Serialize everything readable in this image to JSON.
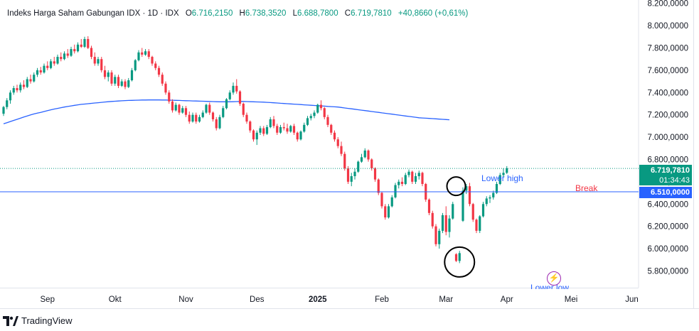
{
  "header": {
    "symbol": "Indeks Harga Saham Gabungan IDX · 1D · IDX",
    "o_label": "O",
    "o_value": "6.716,2150",
    "h_label": "H",
    "h_value": "6.738,3520",
    "l_label": "L",
    "l_value": "6.688,7800",
    "c_label": "C",
    "c_value": "6.719,7810",
    "change": "+40,8660 (+0,61%)"
  },
  "brand": {
    "name": "TradingView"
  },
  "price_tags": {
    "last_price": "6.719,7810",
    "countdown": "01:34:43",
    "level": "6.510,0000"
  },
  "annotations": {
    "lower_high": "Lower high",
    "break": "Break",
    "lower_low": "Lower low"
  },
  "colors": {
    "up": "#089981",
    "down": "#f23645",
    "ma_line": "#2962ff",
    "level_line": "#2962ff",
    "last_price_tag": "#089981",
    "level_tag": "#2962ff",
    "break_text": "#f23645",
    "lower_high_text": "#2962ff",
    "lower_low_text": "#2962ff",
    "lightning": "#9c27b0"
  },
  "chart_data": {
    "type": "candlestick",
    "title": "Indeks Harga Saham Gabungan IDX · 1D · IDX",
    "y_ticks": [
      "8.200,0000",
      "8.000,0000",
      "7.800,0000",
      "7.600,0000",
      "7.400,0000",
      "7.200,0000",
      "7.000,0000",
      "6.800,0000",
      "6.600,0000",
      "6.400,0000",
      "6.200,0000",
      "6.000,0000",
      "5.800,0000"
    ],
    "y_tick_values": [
      8200,
      8000,
      7800,
      7600,
      7400,
      7200,
      7000,
      6800,
      6600,
      6400,
      6200,
      6000,
      5800
    ],
    "ylim": [
      5650,
      8230
    ],
    "x_ticks": [
      {
        "label": "Sep",
        "i": 13
      },
      {
        "label": "Okt",
        "i": 33
      },
      {
        "label": "Nov",
        "i": 54
      },
      {
        "label": "Des",
        "i": 75
      },
      {
        "label": "2025",
        "i": 93
      },
      {
        "label": "Feb",
        "i": 112
      },
      {
        "label": "Mar",
        "i": 131
      },
      {
        "label": "Apr",
        "i": 149
      },
      {
        "label": "Mei",
        "i": 168
      },
      {
        "label": "Jun",
        "i": 186
      }
    ],
    "candles": [
      [
        7210,
        7280,
        7190,
        7270
      ],
      [
        7270,
        7350,
        7250,
        7330
      ],
      [
        7330,
        7420,
        7300,
        7400
      ],
      [
        7400,
        7460,
        7380,
        7440
      ],
      [
        7440,
        7470,
        7400,
        7420
      ],
      [
        7420,
        7490,
        7400,
        7470
      ],
      [
        7470,
        7510,
        7430,
        7450
      ],
      [
        7450,
        7540,
        7440,
        7520
      ],
      [
        7520,
        7560,
        7480,
        7500
      ],
      [
        7500,
        7580,
        7490,
        7560
      ],
      [
        7560,
        7620,
        7540,
        7600
      ],
      [
        7600,
        7630,
        7560,
        7580
      ],
      [
        7580,
        7660,
        7570,
        7640
      ],
      [
        7640,
        7680,
        7600,
        7620
      ],
      [
        7620,
        7700,
        7610,
        7680
      ],
      [
        7680,
        7720,
        7640,
        7660
      ],
      [
        7660,
        7740,
        7650,
        7720
      ],
      [
        7720,
        7760,
        7680,
        7700
      ],
      [
        7700,
        7770,
        7690,
        7750
      ],
      [
        7750,
        7790,
        7710,
        7730
      ],
      [
        7730,
        7810,
        7720,
        7790
      ],
      [
        7790,
        7830,
        7750,
        7770
      ],
      [
        7770,
        7850,
        7760,
        7830
      ],
      [
        7830,
        7880,
        7800,
        7810
      ],
      [
        7810,
        7900,
        7800,
        7880
      ],
      [
        7880,
        7905,
        7790,
        7800
      ],
      [
        7800,
        7820,
        7700,
        7720
      ],
      [
        7720,
        7760,
        7640,
        7660
      ],
      [
        7660,
        7720,
        7640,
        7700
      ],
      [
        7700,
        7720,
        7580,
        7600
      ],
      [
        7600,
        7640,
        7520,
        7540
      ],
      [
        7540,
        7600,
        7500,
        7580
      ],
      [
        7580,
        7600,
        7460,
        7480
      ],
      [
        7480,
        7560,
        7460,
        7540
      ],
      [
        7540,
        7560,
        7440,
        7460
      ],
      [
        7460,
        7520,
        7450,
        7500
      ],
      [
        7500,
        7520,
        7430,
        7450
      ],
      [
        7450,
        7530,
        7440,
        7510
      ],
      [
        7510,
        7620,
        7500,
        7600
      ],
      [
        7600,
        7700,
        7590,
        7690
      ],
      [
        7690,
        7780,
        7680,
        7760
      ],
      [
        7760,
        7800,
        7720,
        7740
      ],
      [
        7740,
        7790,
        7730,
        7770
      ],
      [
        7770,
        7790,
        7700,
        7720
      ],
      [
        7720,
        7730,
        7640,
        7660
      ],
      [
        7660,
        7680,
        7600,
        7620
      ],
      [
        7620,
        7640,
        7540,
        7560
      ],
      [
        7560,
        7580,
        7460,
        7480
      ],
      [
        7480,
        7500,
        7380,
        7400
      ],
      [
        7400,
        7420,
        7300,
        7320
      ],
      [
        7320,
        7340,
        7220,
        7240
      ],
      [
        7240,
        7310,
        7230,
        7290
      ],
      [
        7290,
        7300,
        7200,
        7220
      ],
      [
        7220,
        7280,
        7210,
        7260
      ],
      [
        7260,
        7280,
        7180,
        7200
      ],
      [
        7200,
        7230,
        7120,
        7140
      ],
      [
        7140,
        7220,
        7130,
        7200
      ],
      [
        7200,
        7220,
        7120,
        7140
      ],
      [
        7140,
        7200,
        7130,
        7180
      ],
      [
        7180,
        7240,
        7170,
        7220
      ],
      [
        7220,
        7300,
        7210,
        7290
      ],
      [
        7290,
        7310,
        7200,
        7220
      ],
      [
        7220,
        7230,
        7140,
        7160
      ],
      [
        7160,
        7180,
        7060,
        7080
      ],
      [
        7080,
        7200,
        7070,
        7180
      ],
      [
        7180,
        7280,
        7170,
        7260
      ],
      [
        7260,
        7350,
        7250,
        7340
      ],
      [
        7340,
        7420,
        7330,
        7400
      ],
      [
        7400,
        7490,
        7380,
        7460
      ],
      [
        7460,
        7520,
        7390,
        7410
      ],
      [
        7410,
        7420,
        7280,
        7300
      ],
      [
        7300,
        7310,
        7180,
        7200
      ],
      [
        7200,
        7220,
        7120,
        7140
      ],
      [
        7140,
        7150,
        7040,
        7060
      ],
      [
        7060,
        7070,
        6960,
        6980
      ],
      [
        6980,
        7060,
        6930,
        7040
      ],
      [
        7040,
        7100,
        7020,
        7080
      ],
      [
        7080,
        7100,
        7010,
        7030
      ],
      [
        7030,
        7110,
        7020,
        7090
      ],
      [
        7090,
        7180,
        7080,
        7160
      ],
      [
        7160,
        7190,
        7080,
        7100
      ],
      [
        7100,
        7120,
        7020,
        7040
      ],
      [
        7040,
        7110,
        7030,
        7090
      ],
      [
        7090,
        7130,
        7060,
        7080
      ],
      [
        7080,
        7120,
        7030,
        7050
      ],
      [
        7050,
        7110,
        7040,
        7100
      ],
      [
        7100,
        7120,
        7020,
        7040
      ],
      [
        7040,
        7050,
        6960,
        6980
      ],
      [
        6980,
        7060,
        6970,
        7050
      ],
      [
        7050,
        7130,
        7040,
        7110
      ],
      [
        7110,
        7190,
        7100,
        7170
      ],
      [
        7170,
        7210,
        7150,
        7190
      ],
      [
        7190,
        7240,
        7170,
        7220
      ],
      [
        7220,
        7300,
        7210,
        7290
      ],
      [
        7290,
        7330,
        7240,
        7260
      ],
      [
        7260,
        7270,
        7160,
        7180
      ],
      [
        7180,
        7200,
        7090,
        7110
      ],
      [
        7110,
        7120,
        7020,
        7040
      ],
      [
        7040,
        7060,
        6960,
        6980
      ],
      [
        6980,
        7000,
        6900,
        6920
      ],
      [
        6920,
        6960,
        6830,
        6850
      ],
      [
        6850,
        6870,
        6700,
        6720
      ],
      [
        6720,
        6740,
        6580,
        6600
      ],
      [
        6600,
        6680,
        6560,
        6650
      ],
      [
        6650,
        6720,
        6620,
        6690
      ],
      [
        6690,
        6790,
        6680,
        6780
      ],
      [
        6780,
        6850,
        6770,
        6820
      ],
      [
        6820,
        6900,
        6810,
        6880
      ],
      [
        6880,
        6890,
        6780,
        6800
      ],
      [
        6800,
        6810,
        6700,
        6720
      ],
      [
        6720,
        6730,
        6600,
        6620
      ],
      [
        6620,
        6630,
        6480,
        6500
      ],
      [
        6500,
        6510,
        6360,
        6380
      ],
      [
        6380,
        6400,
        6260,
        6280
      ],
      [
        6280,
        6400,
        6270,
        6380
      ],
      [
        6380,
        6480,
        6370,
        6460
      ],
      [
        6460,
        6590,
        6450,
        6570
      ],
      [
        6570,
        6620,
        6540,
        6600
      ],
      [
        6600,
        6640,
        6560,
        6580
      ],
      [
        6580,
        6680,
        6570,
        6660
      ],
      [
        6660,
        6710,
        6640,
        6690
      ],
      [
        6690,
        6700,
        6580,
        6600
      ],
      [
        6600,
        6680,
        6580,
        6650
      ],
      [
        6650,
        6700,
        6620,
        6680
      ],
      [
        6680,
        6690,
        6560,
        6580
      ],
      [
        6580,
        6590,
        6420,
        6440
      ],
      [
        6440,
        6450,
        6300,
        6320
      ],
      [
        6320,
        6340,
        6180,
        6200
      ],
      [
        6200,
        6220,
        6020,
        6040
      ],
      [
        6040,
        6180,
        6000,
        6160
      ],
      [
        6160,
        6320,
        6140,
        6300
      ],
      [
        6300,
        6380,
        6120,
        6150
      ],
      [
        6150,
        6300,
        6100,
        6270
      ],
      [
        6270,
        6420,
        6260,
        6400
      ],
      [
        5950,
        5960,
        5880,
        5890
      ],
      [
        5890,
        5980,
        5870,
        5960
      ],
      [
        6250,
        6550,
        6240,
        6520
      ],
      [
        6520,
        6580,
        6490,
        6560
      ],
      [
        6560,
        6590,
        6380,
        6400
      ],
      [
        6400,
        6410,
        6240,
        6260
      ],
      [
        6260,
        6270,
        6140,
        6160
      ],
      [
        6160,
        6300,
        6140,
        6290
      ],
      [
        6290,
        6420,
        6280,
        6400
      ],
      [
        6400,
        6470,
        6380,
        6450
      ],
      [
        6450,
        6480,
        6410,
        6460
      ],
      [
        6460,
        6520,
        6440,
        6500
      ],
      [
        6500,
        6600,
        6490,
        6580
      ],
      [
        6580,
        6680,
        6570,
        6660
      ],
      [
        6660,
        6720,
        6640,
        6680
      ],
      [
        6680,
        6740,
        6670,
        6720
      ]
    ],
    "series": [
      {
        "values": [
          7120,
          7130,
          7140,
          7150,
          7160,
          7170,
          7180,
          7190,
          7200,
          7208,
          7215,
          7222,
          7230,
          7238,
          7245,
          7252,
          7258,
          7264,
          7270,
          7275,
          7280,
          7285,
          7290,
          7294,
          7297,
          7300,
          7303,
          7306,
          7309,
          7312,
          7315,
          7318,
          7320,
          7322,
          7324,
          7326,
          7328,
          7329,
          7330,
          7331,
          7332,
          7333,
          7333,
          7334,
          7334,
          7334,
          7334,
          7333,
          7333,
          7332,
          7331,
          7330,
          7329,
          7328,
          7327,
          7326,
          7325,
          7324,
          7323,
          7322,
          7321,
          7320,
          7319,
          7318,
          7317,
          7317,
          7317,
          7317,
          7318,
          7319,
          7320,
          7320,
          7319,
          7318,
          7317,
          7316,
          7315,
          7314,
          7312,
          7310,
          7308,
          7306,
          7304,
          7302,
          7300,
          7298,
          7296,
          7294,
          7292,
          7290,
          7288,
          7286,
          7284,
          7282,
          7280,
          7278,
          7276,
          7274,
          7272,
          7270,
          7266,
          7262,
          7258,
          7254,
          7250,
          7246,
          7242,
          7238,
          7234,
          7230,
          7226,
          7222,
          7218,
          7214,
          7210,
          7206,
          7202,
          7198,
          7194,
          7190,
          7186,
          7182,
          7178,
          7174,
          7172,
          7170,
          7168,
          7166,
          7164,
          7162,
          7160,
          7158,
          7156
        ]
      }
    ],
    "levels": [
      {
        "value": 6510,
        "label": "6.510,0000"
      }
    ],
    "last_price": 6719.781,
    "annotations": [
      {
        "text": "Lower high",
        "i": 125,
        "y": 6655
      },
      {
        "text": "Break",
        "i": 171,
        "y": 6550
      },
      {
        "text": "Lower low",
        "i": 159,
        "y": 5680
      }
    ],
    "circles": [
      {
        "i": 134,
        "y": 6560
      },
      {
        "i": 135,
        "y": 5880
      }
    ],
    "grid": false
  }
}
